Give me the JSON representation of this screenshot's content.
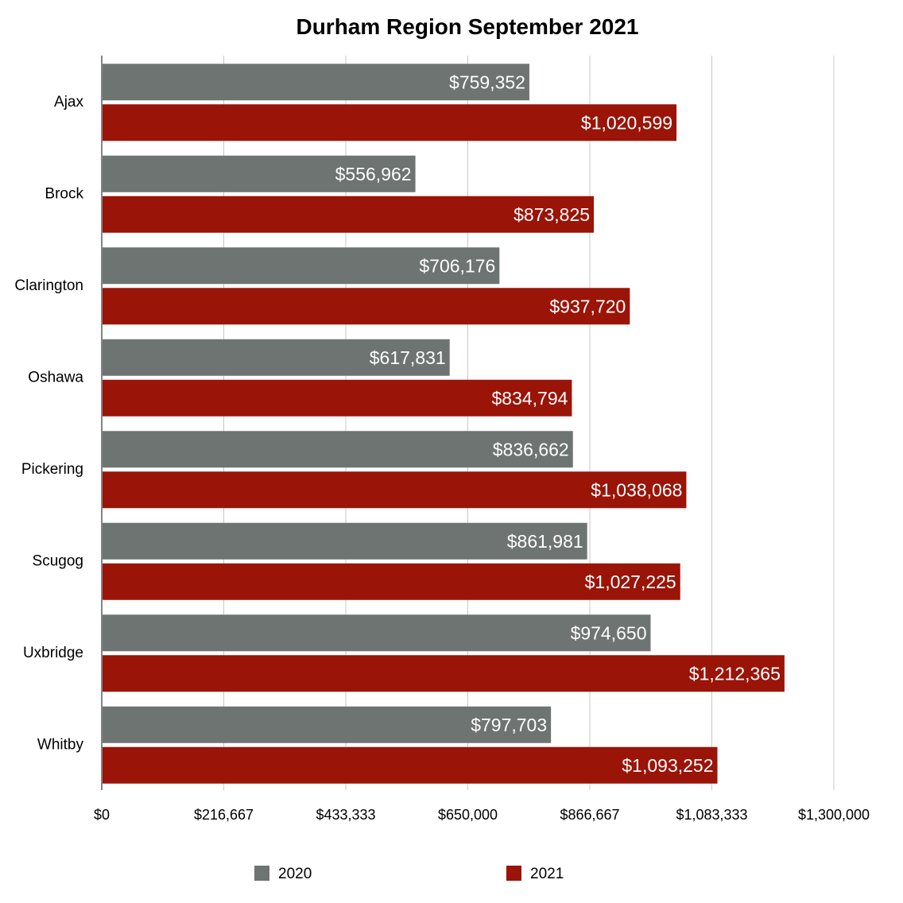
{
  "chart_data": {
    "type": "bar",
    "orientation": "horizontal",
    "title": "Durham Region September 2021",
    "categories": [
      "Ajax",
      "Brock",
      "Clarington",
      "Oshawa",
      "Pickering",
      "Scugog",
      "Uxbridge",
      "Whitby"
    ],
    "series": [
      {
        "name": "2020",
        "color": "#6e7472",
        "values": [
          759352,
          556962,
          706176,
          617831,
          836662,
          861981,
          974650,
          797703
        ],
        "labels": [
          "$759,352",
          "$556,962",
          "$706,176",
          "$617,831",
          "$836,662",
          "$861,981",
          "$974,650",
          "$797,703"
        ]
      },
      {
        "name": "2021",
        "color": "#9a1408",
        "values": [
          1020599,
          873825,
          937720,
          834794,
          1038068,
          1027225,
          1212365,
          1093252
        ],
        "labels": [
          "$1,020,599",
          "$873,825",
          "$937,720",
          "$834,794",
          "$1,038,068",
          "$1,027,225",
          "$1,212,365",
          "$1,093,252"
        ]
      }
    ],
    "xlim": [
      0,
      1300000
    ],
    "xticks": [
      0,
      216667,
      433333,
      650000,
      866667,
      1083333,
      1300000
    ],
    "xtick_labels": [
      "$0",
      "$216,667",
      "$433,333",
      "$650,000",
      "$866,667",
      "$1,083,333",
      "$1,300,000"
    ],
    "grid": true,
    "legend_position": "bottom"
  }
}
